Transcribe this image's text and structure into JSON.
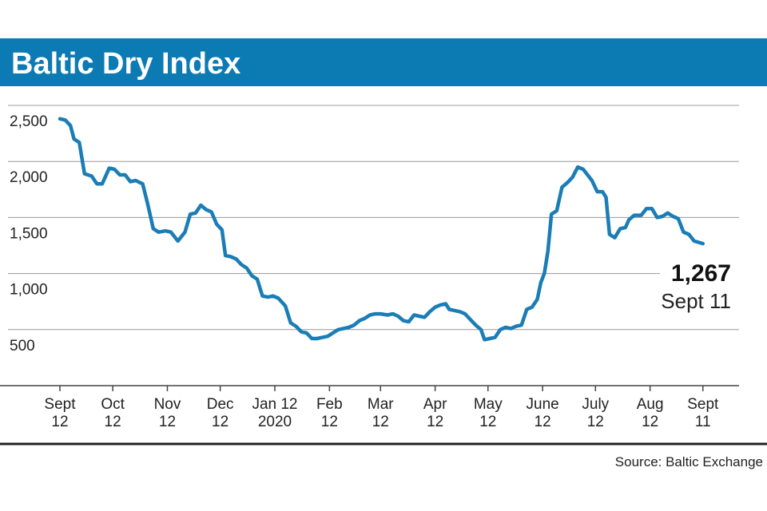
{
  "chart_data": {
    "type": "line",
    "title": "Baltic Dry Index",
    "source": "Source: Baltic Exchange",
    "annotation": {
      "label": "1,267",
      "date": "Sept 11"
    },
    "xlim": [
      -34,
      385.5
    ],
    "ylim": [
      0,
      2500
    ],
    "yticks": [
      {
        "value": 500,
        "label": "500"
      },
      {
        "value": 1000,
        "label": "1,000"
      },
      {
        "value": 1500,
        "label": "1,500"
      },
      {
        "value": 2000,
        "label": "2,000"
      },
      {
        "value": 2500,
        "label": "2,500"
      }
    ],
    "xticks": [
      {
        "value": 0,
        "label": "Sept\n12"
      },
      {
        "value": 30,
        "label": "Oct\n12"
      },
      {
        "value": 61,
        "label": "Nov\n12"
      },
      {
        "value": 91,
        "label": "Dec\n12"
      },
      {
        "value": 122,
        "label": "Jan 12\n2020"
      },
      {
        "value": 153,
        "label": "Feb\n12"
      },
      {
        "value": 182,
        "label": "Mar\n12"
      },
      {
        "value": 213,
        "label": "Apr\n12"
      },
      {
        "value": 243,
        "label": "May\n12"
      },
      {
        "value": 274,
        "label": "June\n12"
      },
      {
        "value": 304,
        "label": "July\n12"
      },
      {
        "value": 335,
        "label": "Aug\n12"
      },
      {
        "value": 365,
        "label": "Sept\n11"
      }
    ],
    "grid": true,
    "color": "#1a7db5",
    "x": [
      0,
      3,
      6,
      8,
      11,
      14,
      18,
      21,
      24,
      28,
      31,
      34,
      37,
      40,
      43,
      47,
      50,
      53,
      56,
      60,
      63,
      67,
      71,
      74,
      77,
      80,
      83,
      86,
      89,
      92,
      94,
      97,
      100,
      103,
      106,
      109,
      112,
      115,
      118,
      121,
      124,
      128,
      131,
      134,
      137,
      140,
      143,
      146,
      149,
      152,
      155,
      158,
      161,
      164,
      167,
      170,
      173,
      176,
      179,
      182,
      186,
      189,
      192,
      195,
      198,
      201,
      204,
      207,
      210,
      213,
      216,
      219,
      221,
      224,
      227,
      230,
      233,
      236,
      239,
      241,
      244,
      247,
      250,
      253,
      256,
      259,
      262,
      265,
      268,
      271,
      273,
      275,
      277,
      279,
      282,
      285,
      288,
      291,
      294,
      297,
      299,
      302,
      305,
      308,
      310,
      312,
      315,
      318,
      321,
      323,
      326,
      330,
      333,
      336,
      339,
      342,
      345,
      348,
      351,
      354,
      357,
      360,
      365
    ],
    "values": [
      2380,
      2370,
      2320,
      2200,
      2170,
      1890,
      1870,
      1800,
      1800,
      1940,
      1930,
      1880,
      1880,
      1820,
      1830,
      1800,
      1610,
      1400,
      1370,
      1380,
      1370,
      1290,
      1370,
      1530,
      1540,
      1610,
      1570,
      1550,
      1440,
      1390,
      1160,
      1150,
      1130,
      1080,
      1050,
      980,
      950,
      800,
      790,
      800,
      780,
      710,
      560,
      530,
      480,
      470,
      420,
      420,
      430,
      440,
      470,
      500,
      510,
      520,
      540,
      580,
      600,
      630,
      640,
      640,
      630,
      640,
      620,
      580,
      570,
      630,
      620,
      610,
      660,
      700,
      720,
      730,
      680,
      670,
      660,
      640,
      590,
      540,
      500,
      410,
      420,
      430,
      500,
      520,
      510,
      530,
      540,
      680,
      700,
      770,
      920,
      1000,
      1200,
      1530,
      1560,
      1770,
      1810,
      1860,
      1950,
      1930,
      1890,
      1830,
      1730,
      1730,
      1680,
      1350,
      1320,
      1400,
      1410,
      1480,
      1520,
      1520,
      1580,
      1580,
      1500,
      1510,
      1540,
      1510,
      1490,
      1370,
      1350,
      1290,
      1267
    ]
  }
}
